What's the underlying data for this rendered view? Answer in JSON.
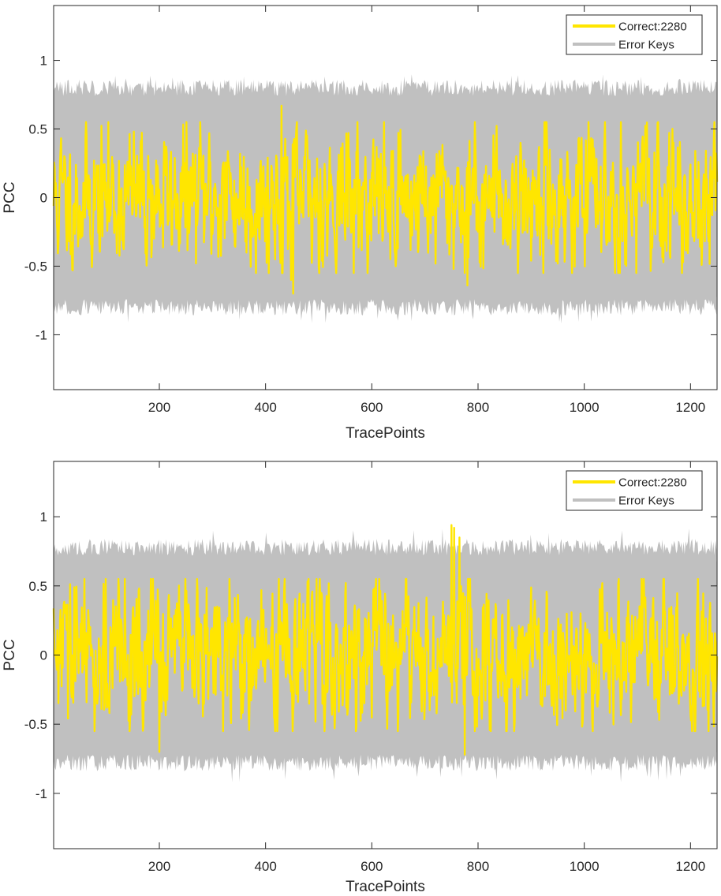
{
  "figure": {
    "title": ""
  },
  "colors": {
    "correct": "#FFE600",
    "error": "#C0C0C0",
    "axis": "#262626"
  },
  "chart_data": [
    {
      "type": "line",
      "title": "",
      "xlabel": "TracePoints",
      "ylabel": "PCC",
      "xlim": [
        1,
        1250
      ],
      "ylim": [
        -1.4,
        1.4
      ],
      "xticks": [
        200,
        400,
        600,
        800,
        1000,
        1200
      ],
      "xtick_labels": [
        "200",
        "400",
        "600",
        "800",
        "1000",
        "1200"
      ],
      "yticks": [
        1,
        0.5,
        0,
        -0.5,
        -1
      ],
      "ytick_labels": [
        "1",
        "0.5",
        "0",
        "-0.5",
        "-1"
      ],
      "legend_position": "top-right",
      "series": [
        {
          "name": "Correct:2280",
          "kind": "noise-line",
          "points": 1250,
          "amplitude": 0.22,
          "seed": 11,
          "spikes": [
            [
              430,
              0.67
            ],
            [
              452,
              -0.7
            ],
            [
              780,
              -0.64
            ],
            [
              448,
              -0.6
            ],
            [
              775,
              -0.55
            ]
          ]
        },
        {
          "name": "Error Keys",
          "kind": "envelope-band",
          "inner_upper": 0.72,
          "inner_lower": -0.72,
          "outer_upper": 0.8,
          "outer_lower": -0.8,
          "peak_upper": 0.9,
          "peak_lower": -0.93,
          "seed": 5
        }
      ]
    },
    {
      "type": "line",
      "title": "",
      "xlabel": "TracePoints",
      "ylabel": "PCC",
      "xlim": [
        1,
        1250
      ],
      "ylim": [
        -1.4,
        1.4
      ],
      "xticks": [
        200,
        400,
        600,
        800,
        1000,
        1200
      ],
      "xtick_labels": [
        "200",
        "400",
        "600",
        "800",
        "1000",
        "1200"
      ],
      "yticks": [
        1,
        0.5,
        0,
        -0.5,
        -1
      ],
      "ytick_labels": [
        "1",
        "0.5",
        "0",
        "-0.5",
        "-1"
      ],
      "legend_position": "top-right",
      "series": [
        {
          "name": "Correct:2280",
          "kind": "noise-line",
          "points": 1250,
          "amplitude": 0.24,
          "seed": 29,
          "spikes": [
            [
              750,
              0.94
            ],
            [
              755,
              0.92
            ],
            [
              765,
              0.85
            ],
            [
              200,
              -0.7
            ],
            [
              775,
              -0.72
            ]
          ]
        },
        {
          "name": "Error Keys",
          "kind": "envelope-band",
          "inner_upper": 0.68,
          "inner_lower": -0.7,
          "outer_upper": 0.78,
          "outer_lower": -0.78,
          "peak_upper": 0.92,
          "peak_lower": -0.92,
          "seed": 17
        }
      ]
    }
  ]
}
